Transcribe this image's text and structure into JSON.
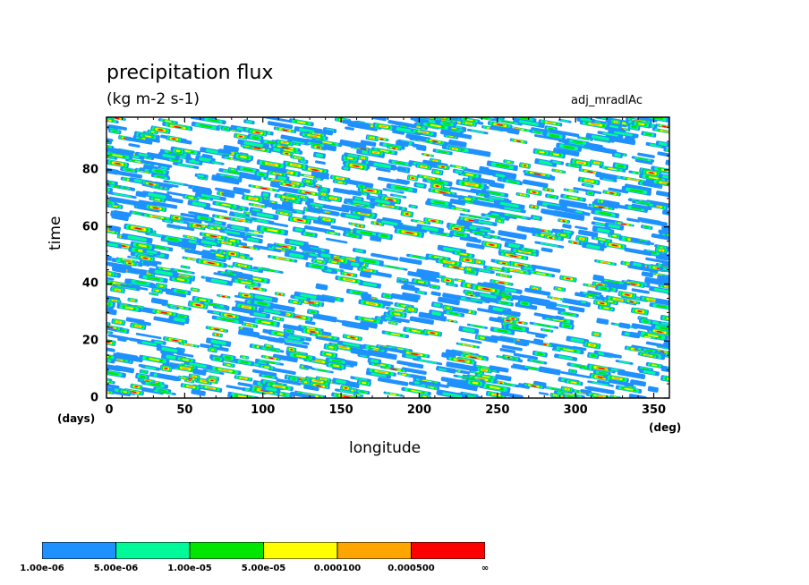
{
  "chart_data": {
    "type": "heatmap",
    "title": "precipitation flux",
    "subtitle": "(kg m-2 s-1)",
    "run_label": "adj_mradlAc",
    "xlabel": "longitude",
    "x_unit": "(deg)",
    "ylabel": "time",
    "y_unit": "(days)",
    "xlim": [
      0,
      360
    ],
    "ylim": [
      0,
      98.5
    ],
    "x_ticks": [
      "0",
      "50",
      "100",
      "150",
      "200",
      "250",
      "300",
      "350"
    ],
    "y_ticks": [
      "0",
      "20",
      "40",
      "60",
      "80"
    ],
    "pattern": "filled contours of small streaks tilted downward toward increasing longitude (eastward-moving precipitation bands) over the full 0-360 deg by 0-98 day domain",
    "colorbar": {
      "bins": [
        {
          "from": "1.00e-06",
          "to": "5.00e-06",
          "color": "#1e90ff"
        },
        {
          "from": "5.00e-06",
          "to": "1.00e-05",
          "color": "#00fa9a"
        },
        {
          "from": "1.00e-05",
          "to": "5.00e-05",
          "color": "#00e600"
        },
        {
          "from": "5.00e-05",
          "to": "0.000100",
          "color": "#ffff00"
        },
        {
          "from": "0.000100",
          "to": "0.000500",
          "color": "#ffa500"
        },
        {
          "from": "0.000500",
          "to": "∞",
          "color": "#ff0000"
        }
      ],
      "labels": [
        "1.00e-06",
        "5.00e-06",
        "1.00e-05",
        "5.00e-05",
        "0.000100",
        "0.000500",
        "∞"
      ]
    }
  }
}
